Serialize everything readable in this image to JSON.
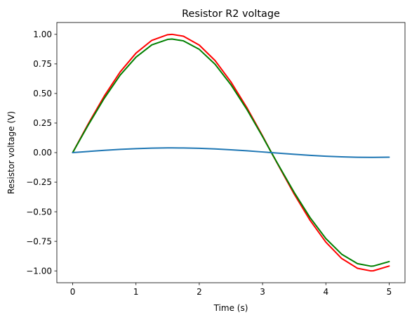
{
  "chart_data": {
    "type": "line",
    "title": "Resistor R2 voltage",
    "xlabel": "Time (s)",
    "ylabel": "Resistor voltage (V)",
    "xlim": [
      -0.25,
      5.25
    ],
    "ylim": [
      -1.1,
      1.1
    ],
    "xticks": [
      0,
      1,
      2,
      3,
      4,
      5
    ],
    "xtick_labels": [
      "0",
      "1",
      "2",
      "3",
      "4",
      "5"
    ],
    "yticks": [
      -1.0,
      -0.75,
      -0.5,
      -0.25,
      0.0,
      0.25,
      0.5,
      0.75,
      1.0
    ],
    "ytick_labels": [
      "−1.00",
      "−0.75",
      "−0.50",
      "−0.25",
      "0.00",
      "0.25",
      "0.50",
      "0.75",
      "1.00"
    ],
    "grid": false,
    "series": [
      {
        "color": "#ff0000",
        "x": [
          0,
          0.25,
          0.5,
          0.75,
          1.0,
          1.25,
          1.5,
          1.57,
          1.75,
          2.0,
          2.25,
          2.5,
          2.75,
          3.0,
          3.14,
          3.25,
          3.5,
          3.75,
          4.0,
          4.25,
          4.5,
          4.71,
          4.75,
          5.0
        ],
        "y": [
          0,
          0.247,
          0.479,
          0.682,
          0.841,
          0.949,
          0.997,
          1.0,
          0.984,
          0.909,
          0.778,
          0.598,
          0.382,
          0.141,
          0.0,
          -0.108,
          -0.351,
          -0.572,
          -0.757,
          -0.895,
          -0.978,
          -1.0,
          -0.999,
          -0.959
        ]
      },
      {
        "color": "#008000",
        "x": [
          0,
          0.25,
          0.5,
          0.75,
          1.0,
          1.25,
          1.5,
          1.57,
          1.75,
          2.0,
          2.25,
          2.5,
          2.75,
          3.0,
          3.14,
          3.25,
          3.5,
          3.75,
          4.0,
          4.25,
          4.5,
          4.71,
          4.75,
          5.0
        ],
        "y": [
          0,
          0.237,
          0.46,
          0.655,
          0.807,
          0.911,
          0.957,
          0.96,
          0.945,
          0.873,
          0.747,
          0.574,
          0.367,
          0.135,
          0.0,
          -0.104,
          -0.337,
          -0.549,
          -0.727,
          -0.859,
          -0.939,
          -0.96,
          -0.959,
          -0.921
        ]
      },
      {
        "color": "#1f77b4",
        "x": [
          0,
          0.25,
          0.5,
          0.75,
          1.0,
          1.25,
          1.5,
          1.57,
          1.75,
          2.0,
          2.25,
          2.5,
          2.75,
          3.0,
          3.14,
          3.25,
          3.5,
          3.75,
          4.0,
          4.25,
          4.5,
          4.71,
          4.75,
          5.0
        ],
        "y": [
          0,
          0.0099,
          0.0192,
          0.0273,
          0.0337,
          0.038,
          0.0399,
          0.04,
          0.0394,
          0.0364,
          0.0311,
          0.0239,
          0.0153,
          0.0056,
          0.0,
          -0.0043,
          -0.014,
          -0.0229,
          -0.0303,
          -0.0358,
          -0.0391,
          -0.04,
          -0.04,
          -0.0384
        ]
      }
    ]
  }
}
